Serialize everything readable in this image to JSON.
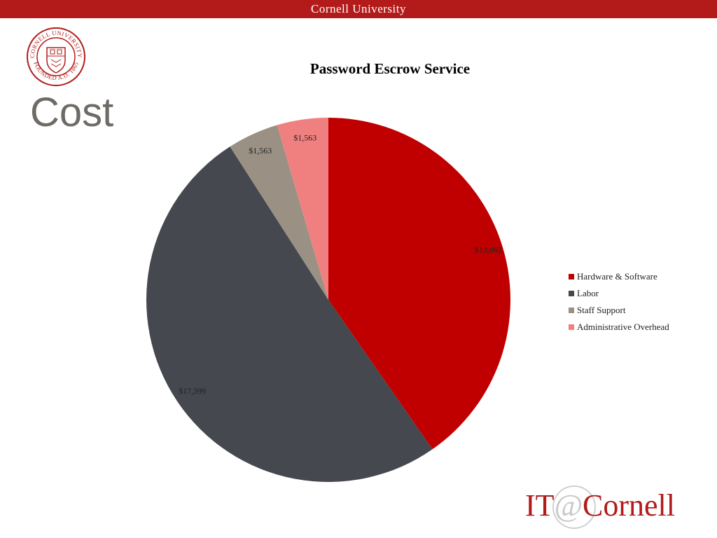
{
  "header": {
    "university": "Cornell University"
  },
  "slide": {
    "title": "Cost"
  },
  "seal": {
    "text_top": "CORNELL UNIVERSITY",
    "text_bottom": "FOUNDED A.D. 1865"
  },
  "logo": {
    "text": "IT@Cornell",
    "part1": "IT",
    "part2": "@",
    "part3": "Cornell"
  },
  "colors": {
    "brand_red": "#b31b1b",
    "hardware_software": "#c00000",
    "labor": "#45484e",
    "staff_support": "#9a9184",
    "administrative_overhead": "#f08080"
  },
  "chart_data": {
    "type": "pie",
    "title": "Password Escrow Service",
    "categories": [
      "Hardware & Software",
      "Labor",
      "Staff Support",
      "Administrative Overhead"
    ],
    "values": [
      13862,
      17399,
      1563,
      1563
    ],
    "data_labels": [
      "$13,862",
      "$17,399",
      "$1,563",
      "$1,563"
    ],
    "legend_position": "right"
  }
}
